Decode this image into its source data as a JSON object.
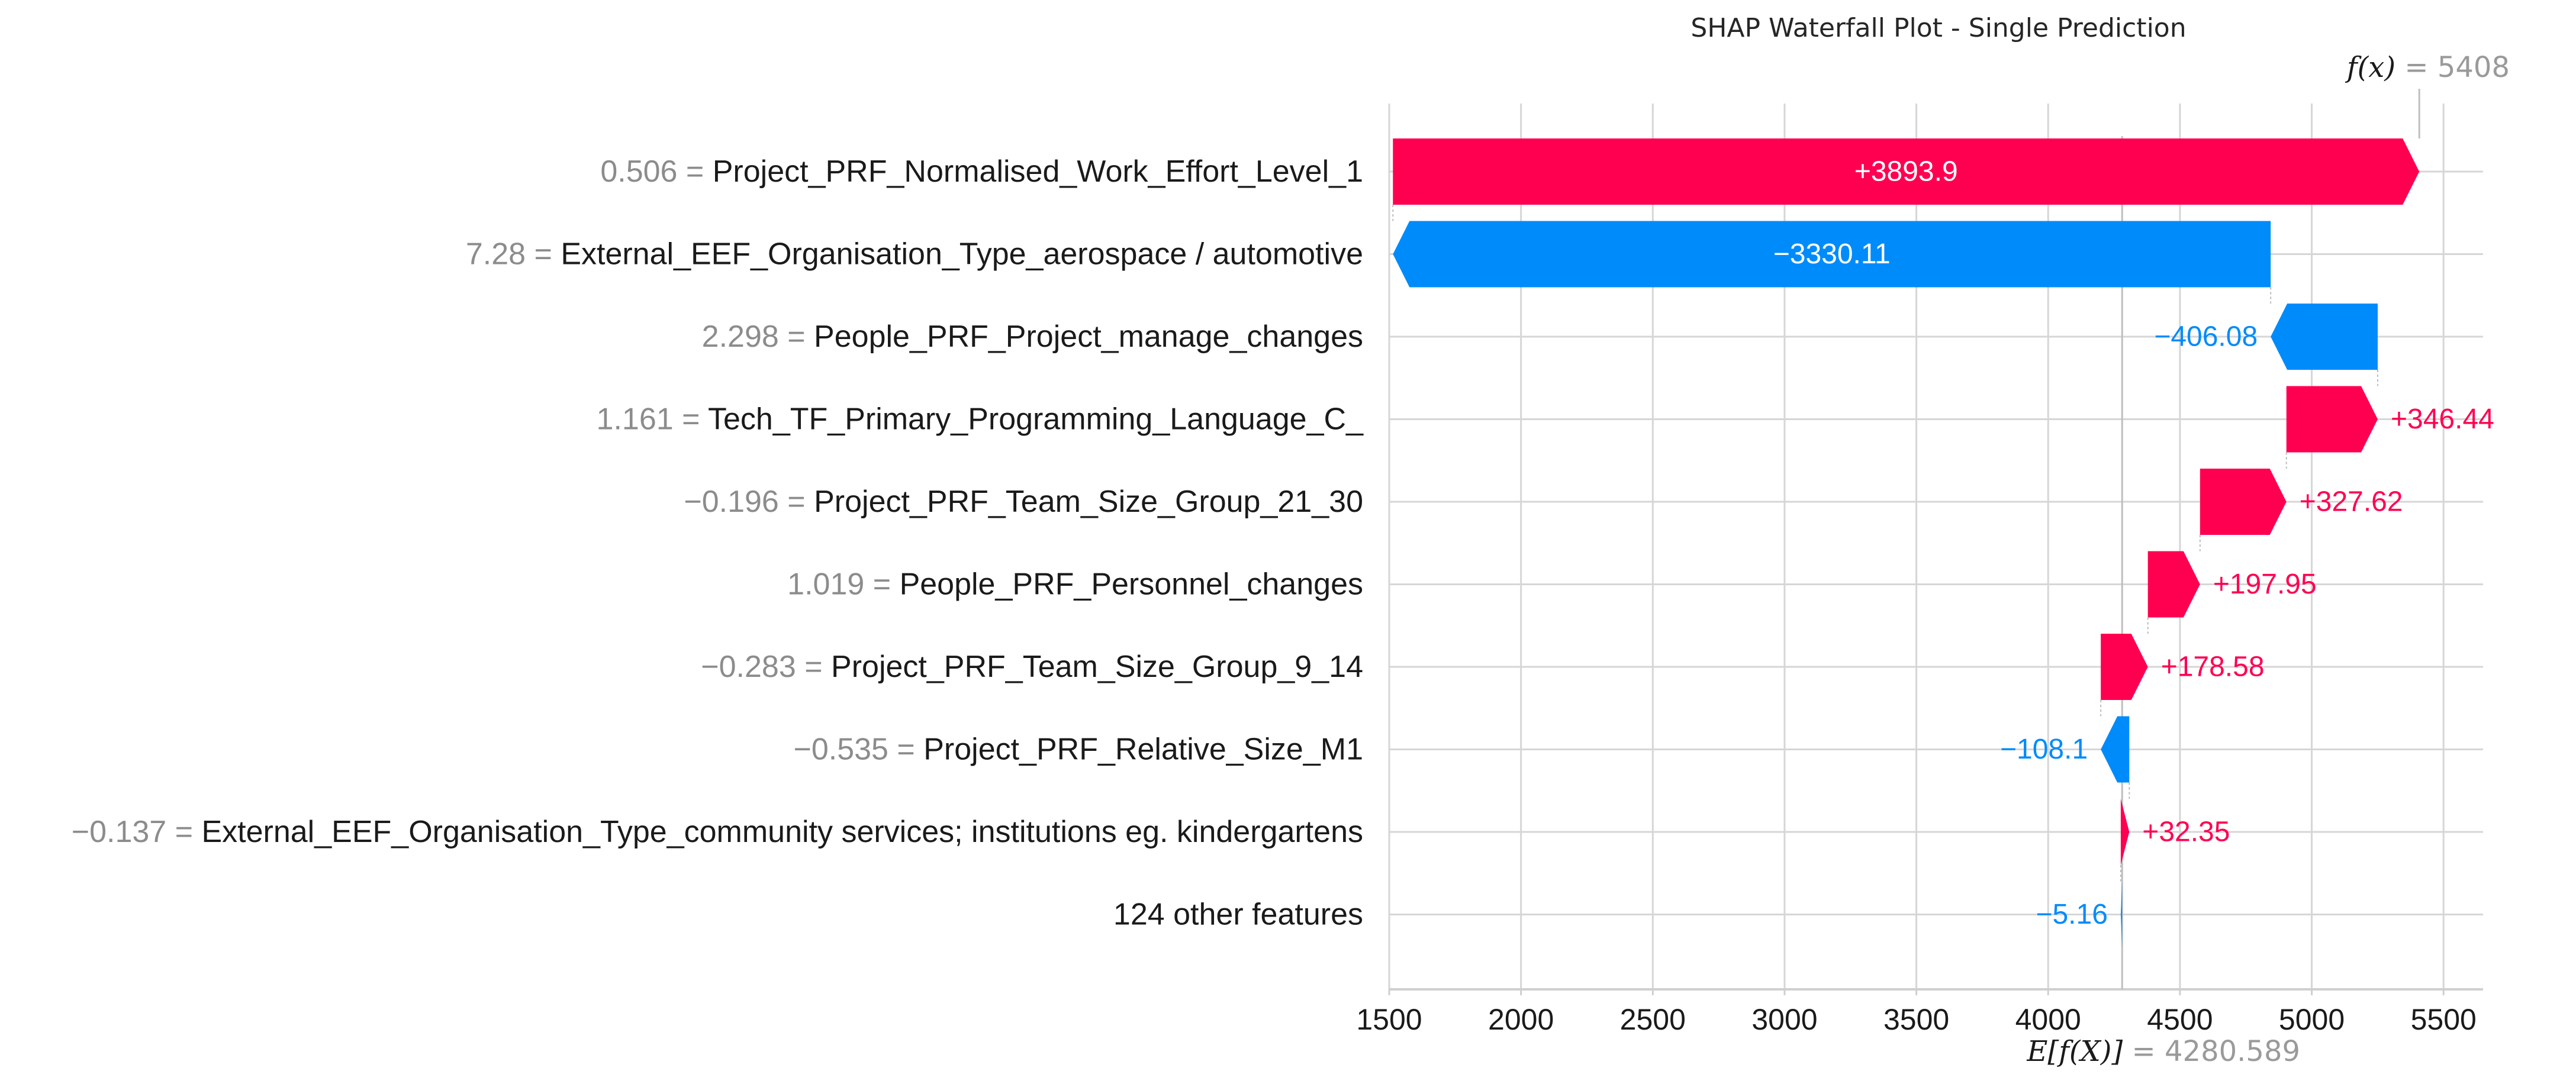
{
  "chart_data": {
    "type": "bar",
    "title": "SHAP Waterfall Plot - Single Prediction",
    "fx_label": "f(x)",
    "fx_value": "5408",
    "efx_label": "E[f(X)]",
    "efx_value": "4280.589",
    "base_value": 4280.589,
    "xlim": [
      1500,
      5650
    ],
    "xticks": [
      1500,
      2000,
      2500,
      3000,
      3500,
      4000,
      4500,
      5000,
      5500
    ],
    "grid": true,
    "colors": {
      "positive": "#ff0051",
      "negative": "#008bfb"
    },
    "features": [
      {
        "value": "0.506",
        "name": "Project_PRF_Normalised_Work_Effort_Level_1",
        "contribution": 3893.9,
        "label": "+3893.9"
      },
      {
        "value": "7.28",
        "name": "External_EEF_Organisation_Type_aerospace / automotive",
        "contribution": -3330.11,
        "label": "−3330.11"
      },
      {
        "value": "2.298",
        "name": "People_PRF_Project_manage_changes",
        "contribution": -406.08,
        "label": "−406.08"
      },
      {
        "value": "1.161",
        "name": "Tech_TF_Primary_Programming_Language_C_",
        "contribution": 346.44,
        "label": "+346.44"
      },
      {
        "value": "−0.196",
        "name": "Project_PRF_Team_Size_Group_21_30",
        "contribution": 327.62,
        "label": "+327.62"
      },
      {
        "value": "1.019",
        "name": "People_PRF_Personnel_changes",
        "contribution": 197.95,
        "label": "+197.95"
      },
      {
        "value": "−0.283",
        "name": "Project_PRF_Team_Size_Group_9_14",
        "contribution": 178.58,
        "label": "+178.58"
      },
      {
        "value": "−0.535",
        "name": "Project_PRF_Relative_Size_M1",
        "contribution": -108.1,
        "label": "−108.1"
      },
      {
        "value": "−0.137",
        "name": "External_EEF_Organisation_Type_community services; institutions eg. kindergartens",
        "contribution": 32.35,
        "label": "+32.35"
      },
      {
        "value": "",
        "name": "124 other features",
        "contribution": -5.16,
        "label": "−5.16"
      }
    ]
  }
}
